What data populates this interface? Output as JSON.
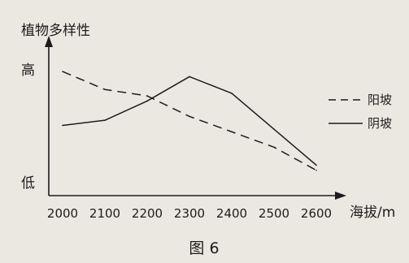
{
  "chart_data": {
    "type": "line",
    "ylabel": "植物多样性",
    "xlabel": "海拔/m",
    "x": [
      2000,
      2100,
      2200,
      2300,
      2400,
      2500,
      2600
    ],
    "xlim": [
      2000,
      2600
    ],
    "y_tick_labels": {
      "high": "高",
      "low": "低"
    },
    "ylim": [
      0,
      1
    ],
    "series": [
      {
        "name": "阳坡",
        "style": "dashed",
        "values": [
          0.86,
          0.72,
          0.67,
          0.51,
          0.39,
          0.27,
          0.09
        ]
      },
      {
        "name": "阴坡",
        "style": "solid",
        "values": [
          0.44,
          0.48,
          0.63,
          0.82,
          0.69,
          0.41,
          0.13
        ]
      }
    ],
    "legend_position": "right",
    "grid": false,
    "caption": "图 6"
  }
}
